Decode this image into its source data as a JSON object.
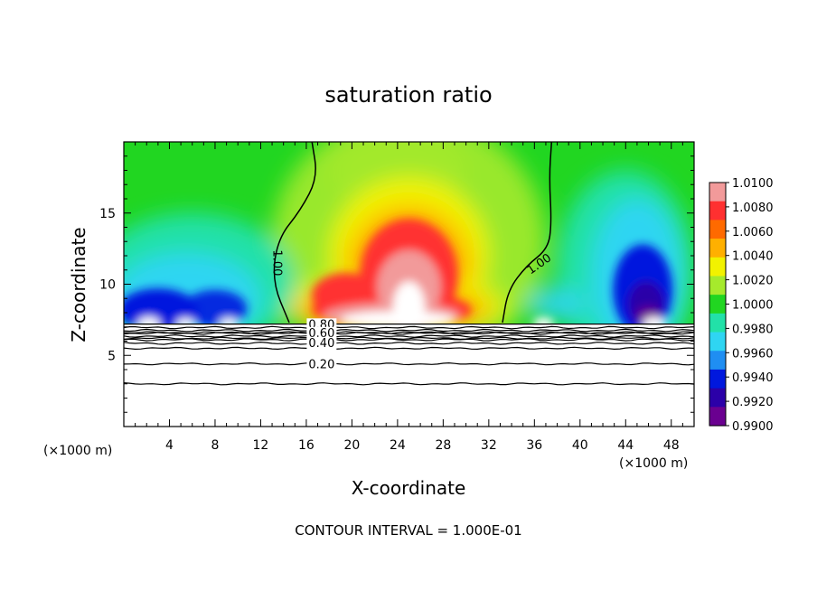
{
  "chart_data": {
    "type": "heatmap",
    "title": "saturation ratio",
    "xlabel": "X-coordinate",
    "ylabel": "Z-coordinate",
    "x_unit": "(×1000 m)",
    "z_unit": "(×1000 m)",
    "xlim": [
      0,
      50
    ],
    "ylim": [
      0,
      20
    ],
    "x_ticks": [
      4,
      8,
      12,
      16,
      20,
      24,
      28,
      32,
      36,
      40,
      44,
      48
    ],
    "y_ticks": [
      5,
      10,
      15
    ],
    "colorbar": {
      "min": 0.99,
      "max": 1.01,
      "tick_labels": [
        "1.0100",
        "1.0080",
        "1.0060",
        "1.0040",
        "1.0020",
        "1.0000",
        "0.9980",
        "0.9960",
        "0.9940",
        "0.9920",
        "0.9900"
      ],
      "colors": [
        "#f29a9a",
        "#ff3030",
        "#ff6a00",
        "#ffb000",
        "#f2f200",
        "#a6ea2c",
        "#21d621",
        "#22e1a8",
        "#2fd5f2",
        "#1f8ef2",
        "#0018de",
        "#2b00a8",
        "#6a0090"
      ]
    },
    "contour_interval": "CONTOUR INTERVAL = 1.000E-01",
    "contour_labels": [
      "1.00",
      "1.00",
      "0.80",
      "0.60",
      "0.40",
      "0.20"
    ],
    "features": [
      {
        "kind": "ridge-max",
        "x": 25,
        "z_top": 15,
        "value": 1.01
      },
      {
        "kind": "minimum",
        "x": 46,
        "z": 10,
        "value": 0.99
      },
      {
        "kind": "minimum",
        "x": 4,
        "z": 9.5,
        "value": 0.992
      },
      {
        "kind": "minimum",
        "x": 7,
        "z": 10,
        "value": 0.993
      }
    ],
    "contour_1_00_left": [
      [
        16.5,
        20
      ],
      [
        17,
        17.5
      ],
      [
        15.5,
        15.2
      ],
      [
        13.5,
        13.2
      ],
      [
        13,
        10.2
      ],
      [
        14.5,
        7.3
      ]
    ],
    "contour_1_00_right": [
      [
        37.5,
        20
      ],
      [
        37.3,
        17.5
      ],
      [
        37.5,
        14.3
      ],
      [
        37.2,
        12.5
      ],
      [
        35.3,
        11.3
      ],
      [
        33.7,
        9.6
      ],
      [
        33.2,
        7.3
      ]
    ],
    "lower_contours": [
      {
        "level": 0.8,
        "z": 6.6
      },
      {
        "level": 0.6,
        "z": 6.2
      },
      {
        "level": 0.4,
        "z": 5.5
      },
      {
        "level": 0.2,
        "z": 4.4
      },
      {
        "level": 0.1,
        "z": 3.0
      }
    ],
    "surface_z": 7.2
  }
}
